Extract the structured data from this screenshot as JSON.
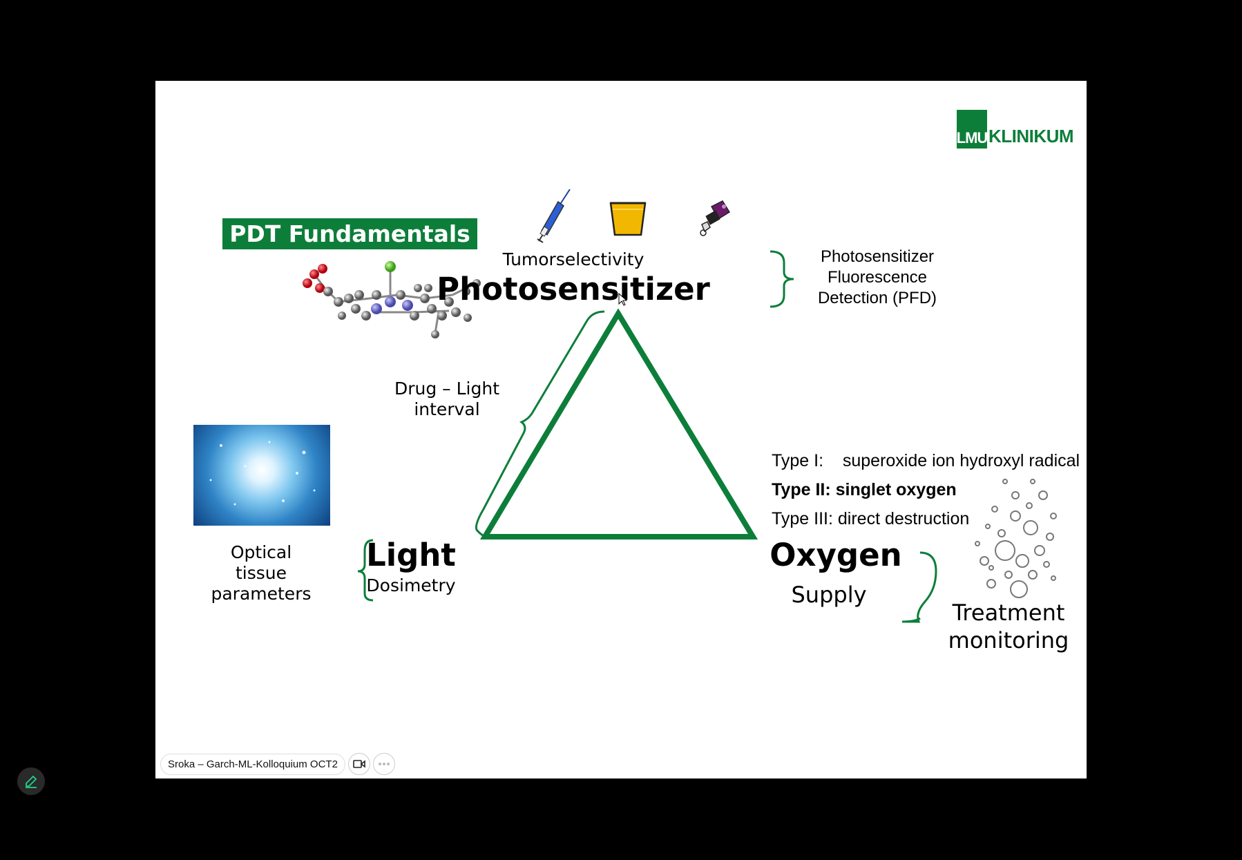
{
  "slide": {
    "logo": {
      "box_text": "LMU",
      "text": "KLINIKUM"
    },
    "title": "PDT Fundamentals",
    "photosensitizer": {
      "subtitle": "Tumorselectivity",
      "title": "Photosensitizer",
      "detection_line1": "Photosensitizer",
      "detection_line2": "Fluorescence",
      "detection_line3": "Detection (PFD)"
    },
    "interval": {
      "line1": "Drug – Light",
      "line2": "interval"
    },
    "light": {
      "title": "Light",
      "subtitle": "Dosimetry",
      "params_line1": "Optical",
      "params_line2": "tissue",
      "params_line3": "parameters"
    },
    "oxygen": {
      "title": "Oxygen",
      "subtitle": "Supply",
      "types": [
        {
          "label": "Type I:",
          "text": "superoxide ion hydroxyl radical"
        },
        {
          "label": "Type II:",
          "text": "singlet oxygen"
        },
        {
          "label": "Type III:",
          "text": "direct destruction"
        }
      ],
      "monitoring_line1": "Treatment",
      "monitoring_line2": "monitoring"
    }
  },
  "meeting": {
    "name": "Sroka – Garch-ML-Kolloquium OCT2"
  },
  "colors": {
    "accent": "#0d7e3a",
    "background": "#000000"
  },
  "icons": [
    "syringe-icon",
    "cup-icon",
    "pen-injector-icon",
    "video-icon",
    "more-icon",
    "edit-icon"
  ]
}
